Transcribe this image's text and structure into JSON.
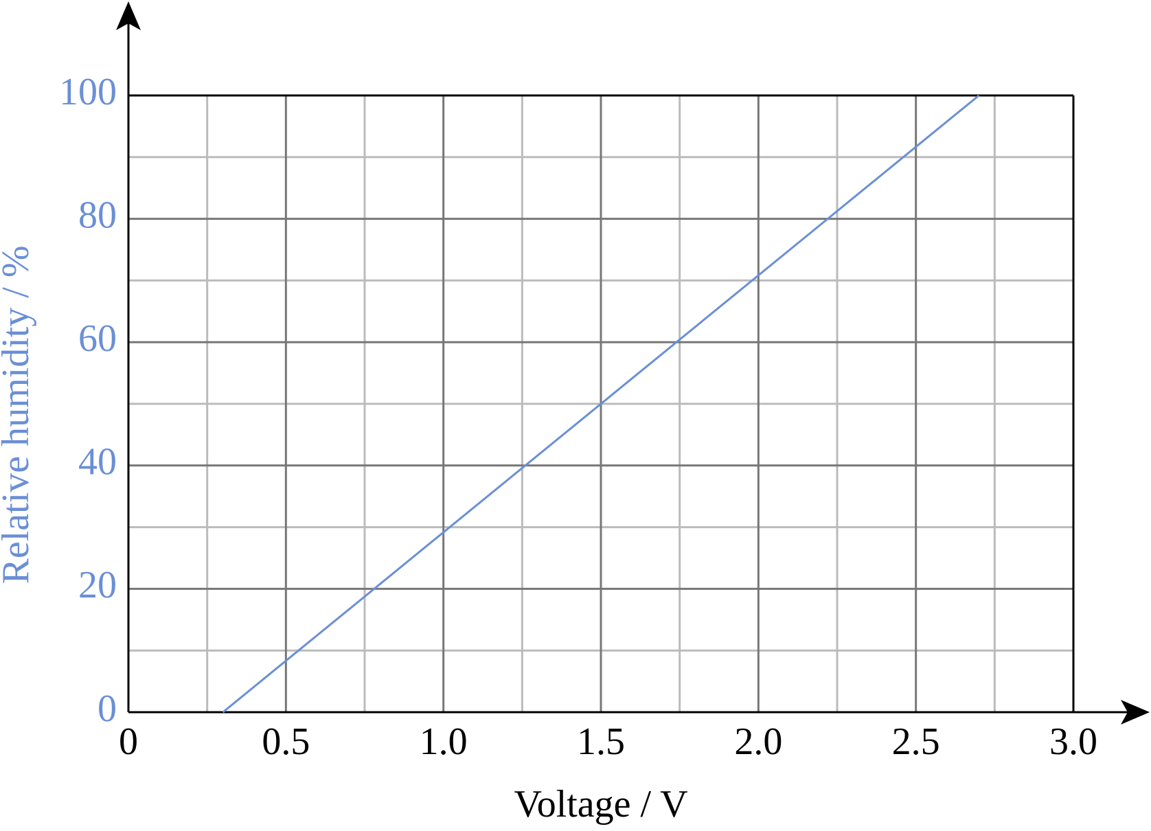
{
  "chart_data": {
    "type": "line",
    "xlabel": "Voltage / V",
    "ylabel": "Relative humidity / %",
    "x": [
      0.3,
      2.7
    ],
    "values": [
      0,
      100
    ],
    "color": "#6a8fd6",
    "xlim": [
      0,
      3
    ],
    "ylim": [
      0,
      100
    ],
    "xticks": [
      0,
      0.5,
      {
        "value": 1,
        "label": "1.0"
      },
      1.5,
      {
        "value": 2,
        "label": "2.0"
      },
      2.5,
      {
        "value": 3,
        "label": "3.0"
      }
    ],
    "yticks": [
      0,
      20,
      40,
      60,
      80,
      100
    ],
    "xminor": [
      0.25,
      0.75,
      1.25,
      1.75,
      2.25,
      2.75
    ],
    "yminor": [
      10,
      30,
      50,
      70,
      90
    ],
    "grid": true
  }
}
